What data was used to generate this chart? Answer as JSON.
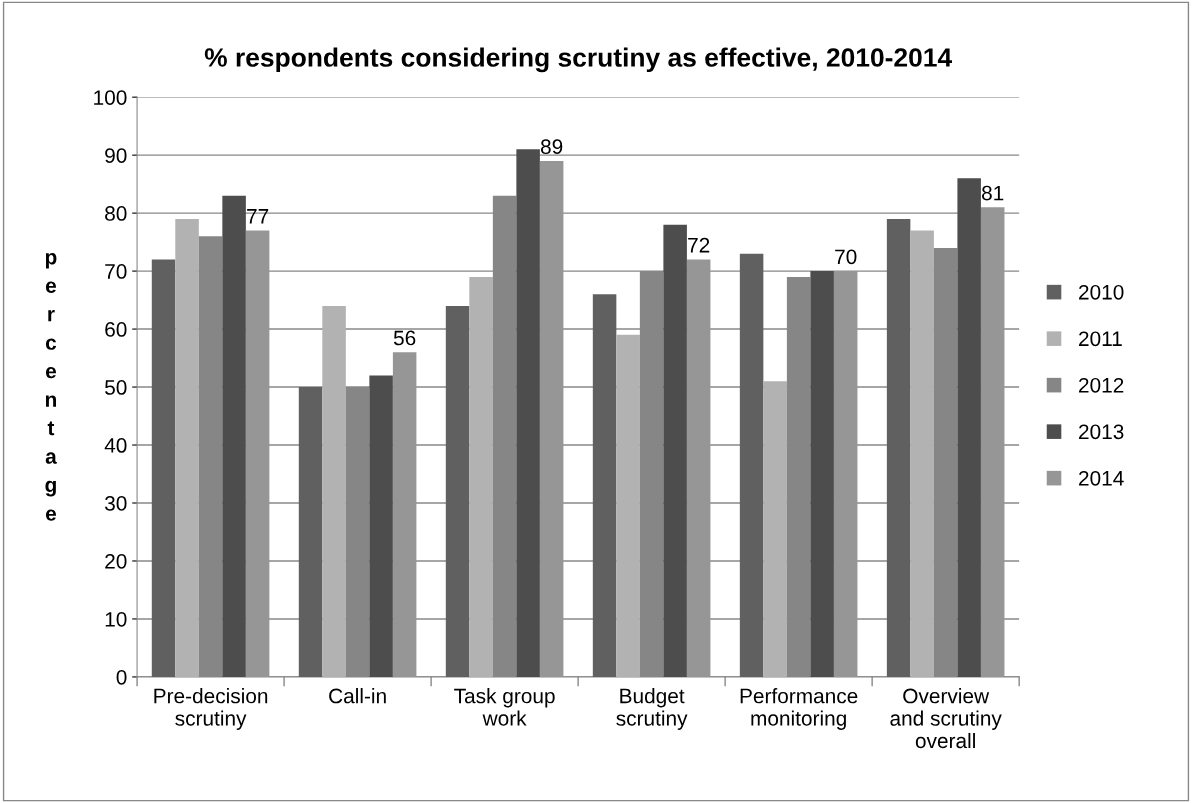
{
  "chart_data": {
    "type": "bar",
    "title": "% respondents considering scrutiny as effective, 2010-2014",
    "ylabel": "percentage",
    "categories": [
      "Pre-decision\nscrutiny",
      "Call-in",
      "Task group\nwork",
      "Budget\nscrutiny",
      "Performance\nmonitoring",
      "Overview\nand scrutiny\noverall"
    ],
    "series": [
      {
        "name": "2010",
        "color": "#606060",
        "values": [
          72,
          50,
          64,
          66,
          73,
          79
        ]
      },
      {
        "name": "2011",
        "color": "#b2b2b2",
        "values": [
          79,
          64,
          69,
          59,
          51,
          77
        ]
      },
      {
        "name": "2012",
        "color": "#868686",
        "values": [
          76,
          50,
          83,
          70,
          69,
          74
        ]
      },
      {
        "name": "2013",
        "color": "#4d4d4d",
        "values": [
          83,
          52,
          91,
          78,
          70,
          86
        ]
      },
      {
        "name": "2014",
        "color": "#969696",
        "values": [
          77,
          56,
          89,
          72,
          70,
          81
        ],
        "value_labels": [
          "77",
          "56",
          "89",
          "72",
          "70",
          "81"
        ]
      }
    ],
    "ylim": [
      0,
      100
    ],
    "yticks": [
      0,
      10,
      20,
      30,
      40,
      50,
      60,
      70,
      80,
      90,
      100
    ],
    "grid": "y",
    "legend": "right"
  }
}
